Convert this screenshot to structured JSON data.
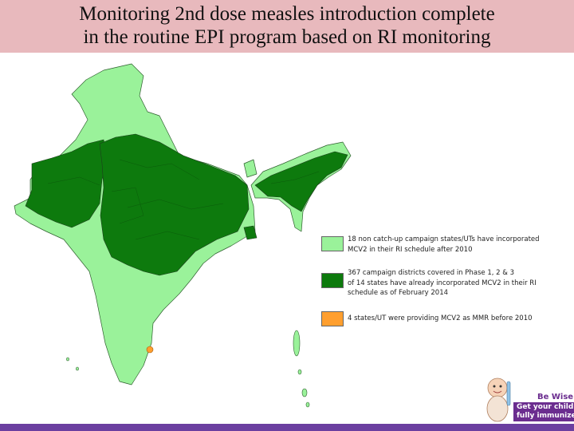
{
  "title": {
    "line1": "Monitoring 2nd  dose measles introduction complete",
    "line2": "in the routine EPI program based on RI monitoring"
  },
  "colors": {
    "title_bg": "#e8b9bd",
    "light_green": "#9af29a",
    "dark_green": "#0d7a0d",
    "orange": "#ff9f2f",
    "footer": "#6b3fa0"
  },
  "legend": [
    {
      "color": "#9af29a",
      "text": "18 non catch-up campaign states/UTs have incorporated\n MCV2 in their RI schedule after 2010"
    },
    {
      "color": "#0d7a0d",
      "text": "367 campaign districts covered in Phase 1, 2 & 3\n of 14 states have already incorporated MCV2 in their RI\nschedule as of February 2014"
    },
    {
      "color": "#ff9f2f",
      "text": "4 states/UT were providing MCV2 as MMR before 2010"
    }
  ],
  "badge": {
    "line1": "Be Wise!",
    "line2": "Get your child",
    "line3": "fully immunized"
  }
}
